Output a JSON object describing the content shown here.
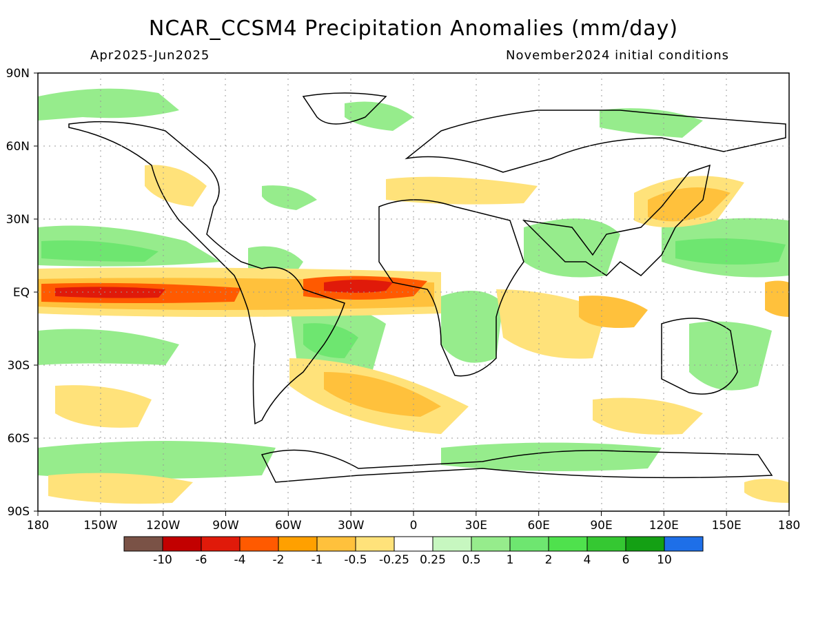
{
  "title": "NCAR_CCSM4 Precipitation Anomalies (mm/day)",
  "period": "Apr2025-Jun2025",
  "init": "November2024 initial conditions",
  "lat_labels": [
    "90N",
    "60N",
    "30N",
    "EQ",
    "30S",
    "60S",
    "90S"
  ],
  "lon_labels": [
    "180",
    "150W",
    "120W",
    "90W",
    "60W",
    "30W",
    "0",
    "30E",
    "60E",
    "90E",
    "120E",
    "150E",
    "180"
  ],
  "colorbar": {
    "colors": [
      "#7a5246",
      "#c20000",
      "#e01a0a",
      "#ff5a00",
      "#ffa000",
      "#ffc13c",
      "#ffe27a",
      "#ffffff",
      "#c7f7c0",
      "#96ec8c",
      "#6ee670",
      "#4fe14d",
      "#35c832",
      "#14a014",
      "#1e6fe8"
    ],
    "labels": [
      "-10",
      "-6",
      "-4",
      "-2",
      "-1",
      "-0.5",
      "-0.25",
      "0.25",
      "0.5",
      "1",
      "2",
      "4",
      "6",
      "10"
    ]
  }
}
